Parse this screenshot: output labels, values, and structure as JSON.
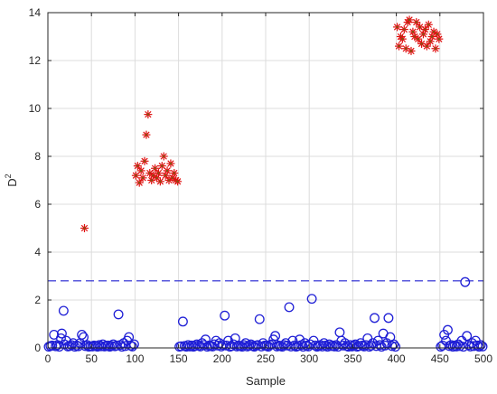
{
  "chart_data": {
    "type": "scatter",
    "title": "",
    "xlabel": "Sample",
    "ylabel": {
      "base": "D",
      "superscript": "2"
    },
    "xlim": [
      0,
      500
    ],
    "ylim": [
      0,
      14
    ],
    "xticks": [
      0,
      50,
      100,
      150,
      200,
      250,
      300,
      350,
      400,
      450,
      500
    ],
    "yticks": [
      0,
      2,
      4,
      6,
      8,
      10,
      12,
      14
    ],
    "grid": true,
    "threshold": {
      "y": 2.8,
      "style": "dashed",
      "color": "#2020d0"
    },
    "series": [
      {
        "marker": "circle",
        "color": "#1f1fd6",
        "points": [
          [
            1,
            0.05
          ],
          [
            3,
            0.08
          ],
          [
            5,
            0.1
          ],
          [
            7,
            0.55
          ],
          [
            9,
            0.07
          ],
          [
            11,
            0.12
          ],
          [
            13,
            0.05
          ],
          [
            15,
            0.4
          ],
          [
            16,
            0.6
          ],
          [
            18,
            1.55
          ],
          [
            19,
            0.15
          ],
          [
            21,
            0.3
          ],
          [
            23,
            0.06
          ],
          [
            25,
            0.08
          ],
          [
            27,
            0.12
          ],
          [
            29,
            0.2
          ],
          [
            31,
            0.05
          ],
          [
            33,
            0.1
          ],
          [
            35,
            0.07
          ],
          [
            37,
            0.2
          ],
          [
            39,
            0.55
          ],
          [
            41,
            0.45
          ],
          [
            43,
            0.08
          ],
          [
            45,
            0.12
          ],
          [
            47,
            0.05
          ],
          [
            49,
            0.07
          ],
          [
            51,
            0.06
          ],
          [
            53,
            0.1
          ],
          [
            55,
            0.08
          ],
          [
            57,
            0.05
          ],
          [
            59,
            0.12
          ],
          [
            61,
            0.07
          ],
          [
            63,
            0.15
          ],
          [
            65,
            0.06
          ],
          [
            67,
            0.09
          ],
          [
            69,
            0.1
          ],
          [
            71,
            0.05
          ],
          [
            73,
            0.08
          ],
          [
            75,
            0.15
          ],
          [
            77,
            0.07
          ],
          [
            79,
            0.1
          ],
          [
            81,
            1.4
          ],
          [
            83,
            0.12
          ],
          [
            85,
            0.05
          ],
          [
            87,
            0.2
          ],
          [
            89,
            0.08
          ],
          [
            91,
            0.3
          ],
          [
            93,
            0.45
          ],
          [
            95,
            0.1
          ],
          [
            97,
            0.06
          ],
          [
            99,
            0.15
          ],
          [
            151,
            0.05
          ],
          [
            153,
            0.07
          ],
          [
            155,
            1.1
          ],
          [
            157,
            0.08
          ],
          [
            159,
            0.05
          ],
          [
            161,
            0.12
          ],
          [
            163,
            0.06
          ],
          [
            165,
            0.1
          ],
          [
            167,
            0.05
          ],
          [
            169,
            0.08
          ],
          [
            171,
            0.15
          ],
          [
            173,
            0.1
          ],
          [
            175,
            0.06
          ],
          [
            177,
            0.2
          ],
          [
            179,
            0.12
          ],
          [
            181,
            0.35
          ],
          [
            183,
            0.05
          ],
          [
            185,
            0.1
          ],
          [
            187,
            0.08
          ],
          [
            189,
            0.06
          ],
          [
            191,
            0.15
          ],
          [
            193,
            0.3
          ],
          [
            195,
            0.1
          ],
          [
            197,
            0.2
          ],
          [
            199,
            0.06
          ],
          [
            201,
            0.12
          ],
          [
            203,
            1.35
          ],
          [
            205,
            0.1
          ],
          [
            207,
            0.3
          ],
          [
            209,
            0.05
          ],
          [
            211,
            0.08
          ],
          [
            213,
            0.15
          ],
          [
            215,
            0.4
          ],
          [
            217,
            0.06
          ],
          [
            219,
            0.1
          ],
          [
            221,
            0.08
          ],
          [
            223,
            0.05
          ],
          [
            225,
            0.12
          ],
          [
            227,
            0.2
          ],
          [
            229,
            0.06
          ],
          [
            231,
            0.1
          ],
          [
            233,
            0.15
          ],
          [
            235,
            0.08
          ],
          [
            237,
            0.05
          ],
          [
            239,
            0.1
          ],
          [
            241,
            0.12
          ],
          [
            243,
            1.2
          ],
          [
            245,
            0.06
          ],
          [
            247,
            0.2
          ],
          [
            249,
            0.1
          ],
          [
            251,
            0.08
          ],
          [
            253,
            0.05
          ],
          [
            255,
            0.12
          ],
          [
            257,
            0.15
          ],
          [
            259,
            0.35
          ],
          [
            261,
            0.5
          ],
          [
            263,
            0.06
          ],
          [
            265,
            0.1
          ],
          [
            267,
            0.08
          ],
          [
            269,
            0.05
          ],
          [
            271,
            0.12
          ],
          [
            273,
            0.2
          ],
          [
            275,
            0.1
          ],
          [
            277,
            1.7
          ],
          [
            279,
            0.06
          ],
          [
            281,
            0.3
          ],
          [
            283,
            0.1
          ],
          [
            285,
            0.05
          ],
          [
            287,
            0.08
          ],
          [
            289,
            0.35
          ],
          [
            291,
            0.12
          ],
          [
            293,
            0.05
          ],
          [
            295,
            0.2
          ],
          [
            297,
            0.1
          ],
          [
            299,
            0.06
          ],
          [
            301,
            0.15
          ],
          [
            303,
            2.05
          ],
          [
            305,
            0.3
          ],
          [
            307,
            0.1
          ],
          [
            309,
            0.05
          ],
          [
            311,
            0.08
          ],
          [
            313,
            0.12
          ],
          [
            315,
            0.06
          ],
          [
            317,
            0.2
          ],
          [
            319,
            0.1
          ],
          [
            321,
            0.05
          ],
          [
            323,
            0.15
          ],
          [
            325,
            0.08
          ],
          [
            327,
            0.1
          ],
          [
            329,
            0.06
          ],
          [
            331,
            0.12
          ],
          [
            333,
            0.05
          ],
          [
            335,
            0.65
          ],
          [
            337,
            0.3
          ],
          [
            339,
            0.1
          ],
          [
            341,
            0.2
          ],
          [
            343,
            0.08
          ],
          [
            345,
            0.05
          ],
          [
            347,
            0.12
          ],
          [
            349,
            0.06
          ],
          [
            351,
            0.1
          ],
          [
            353,
            0.15
          ],
          [
            355,
            0.05
          ],
          [
            357,
            0.08
          ],
          [
            359,
            0.2
          ],
          [
            361,
            0.1
          ],
          [
            363,
            0.06
          ],
          [
            365,
            0.12
          ],
          [
            367,
            0.4
          ],
          [
            369,
            0.05
          ],
          [
            371,
            0.1
          ],
          [
            373,
            0.2
          ],
          [
            375,
            1.25
          ],
          [
            377,
            0.08
          ],
          [
            379,
            0.3
          ],
          [
            381,
            0.12
          ],
          [
            383,
            0.05
          ],
          [
            385,
            0.6
          ],
          [
            387,
            0.1
          ],
          [
            389,
            0.2
          ],
          [
            391,
            1.25
          ],
          [
            393,
            0.45
          ],
          [
            395,
            0.08
          ],
          [
            397,
            0.15
          ],
          [
            399,
            0.05
          ],
          [
            451,
            0.05
          ],
          [
            453,
            0.1
          ],
          [
            455,
            0.55
          ],
          [
            457,
            0.3
          ],
          [
            459,
            0.75
          ],
          [
            461,
            0.08
          ],
          [
            463,
            0.12
          ],
          [
            465,
            0.05
          ],
          [
            467,
            0.1
          ],
          [
            469,
            0.06
          ],
          [
            471,
            0.15
          ],
          [
            473,
            0.08
          ],
          [
            475,
            0.3
          ],
          [
            477,
            0.05
          ],
          [
            479,
            2.75
          ],
          [
            481,
            0.5
          ],
          [
            483,
            0.12
          ],
          [
            485,
            0.06
          ],
          [
            487,
            0.2
          ],
          [
            489,
            0.08
          ],
          [
            491,
            0.3
          ],
          [
            493,
            0.1
          ],
          [
            495,
            0.05
          ],
          [
            497,
            0.12
          ],
          [
            499,
            0.06
          ]
        ]
      },
      {
        "marker": "asterisk",
        "color": "#e01010",
        "points": [
          [
            42,
            5.0
          ],
          [
            101,
            7.2
          ],
          [
            103,
            7.6
          ],
          [
            105,
            6.9
          ],
          [
            107,
            7.4
          ],
          [
            109,
            7.1
          ],
          [
            111,
            7.8
          ],
          [
            113,
            8.9
          ],
          [
            115,
            9.75
          ],
          [
            117,
            7.3
          ],
          [
            119,
            7.0
          ],
          [
            121,
            7.2
          ],
          [
            123,
            7.5
          ],
          [
            125,
            7.1
          ],
          [
            127,
            7.3
          ],
          [
            129,
            6.95
          ],
          [
            131,
            7.6
          ],
          [
            133,
            8.0
          ],
          [
            135,
            7.2
          ],
          [
            137,
            7.4
          ],
          [
            139,
            7.0
          ],
          [
            141,
            7.7
          ],
          [
            143,
            7.1
          ],
          [
            145,
            7.3
          ],
          [
            147,
            7.0
          ],
          [
            149,
            6.95
          ],
          [
            401,
            13.4
          ],
          [
            403,
            12.6
          ],
          [
            405,
            13.0
          ],
          [
            407,
            12.9
          ],
          [
            409,
            13.3
          ],
          [
            411,
            12.5
          ],
          [
            413,
            13.6
          ],
          [
            415,
            13.7
          ],
          [
            417,
            12.4
          ],
          [
            419,
            13.2
          ],
          [
            421,
            13.0
          ],
          [
            423,
            13.6
          ],
          [
            425,
            12.9
          ],
          [
            427,
            13.4
          ],
          [
            429,
            12.7
          ],
          [
            431,
            13.1
          ],
          [
            433,
            13.3
          ],
          [
            435,
            12.6
          ],
          [
            437,
            13.5
          ],
          [
            439,
            12.8
          ],
          [
            441,
            13.0
          ],
          [
            443,
            13.2
          ],
          [
            445,
            12.5
          ],
          [
            447,
            13.1
          ],
          [
            449,
            12.9
          ]
        ]
      }
    ]
  }
}
